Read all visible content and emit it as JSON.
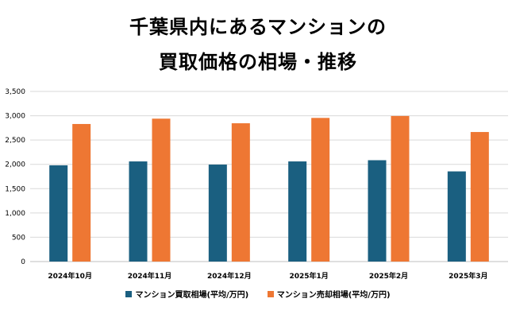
{
  "chart_data": {
    "type": "bar",
    "title_lines": [
      "千葉県内にあるマンションの",
      "買取価格の相場・推移"
    ],
    "categories": [
      "2024年10月",
      "2024年11月",
      "2024年12月",
      "2025年1月",
      "2025年2月",
      "2025年3月"
    ],
    "series": [
      {
        "name": "マンション買取相場(平均/万円)",
        "color": "#1a5f80",
        "values": [
          1980,
          2060,
          1995,
          2060,
          2085,
          1855
        ]
      },
      {
        "name": "マンション売却相場(平均/万円)",
        "color": "#ee7733",
        "values": [
          2830,
          2940,
          2845,
          2955,
          2995,
          2665
        ]
      }
    ],
    "yticks": [
      "0",
      "500",
      "1,000",
      "1,500",
      "2,000",
      "2,500",
      "3,000",
      "3,500"
    ],
    "ylim": [
      0,
      3500
    ],
    "grid": true,
    "legend_position": "bottom"
  }
}
